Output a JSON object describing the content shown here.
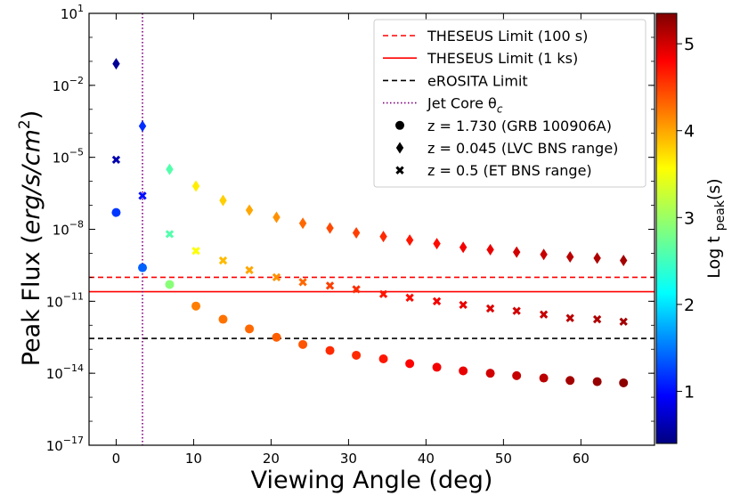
{
  "chart_data": {
    "type": "scatter",
    "xlabel": "Viewing Angle (deg)",
    "ylabel": "Peak Flux (erg/s/cm2)",
    "ylabel_parts": {
      "main": "Peak Flux (",
      "italic": "erg/s/cm",
      "sup": "2",
      "close": ")"
    },
    "xlim": [
      -3.5,
      69.5
    ],
    "ylim_log10": [
      -17,
      1
    ],
    "x_ticks": [
      0,
      10,
      20,
      30,
      40,
      50,
      60
    ],
    "y_ticks": [
      {
        "exp": 1,
        "base": "10",
        "sup": "1"
      },
      {
        "exp": -2,
        "base": "10",
        "sup": "−2"
      },
      {
        "exp": -5,
        "base": "10",
        "sup": "−5"
      },
      {
        "exp": -8,
        "base": "10",
        "sup": "−8"
      },
      {
        "exp": -11,
        "base": "10",
        "sup": "−11"
      },
      {
        "exp": -14,
        "base": "10",
        "sup": "−14"
      },
      {
        "exp": -17,
        "base": "10",
        "sup": "−17"
      }
    ],
    "colorbar": {
      "label": "Log t",
      "label_sub": "peak",
      "label_suffix": "(s)",
      "range": [
        0.4,
        5.35
      ],
      "ticks": [
        1,
        2,
        3,
        4,
        5
      ],
      "colors": [
        "#000080",
        "#0000ff",
        "#00ffff",
        "#ffff00",
        "#ff0000",
        "#800000"
      ]
    },
    "hlines": [
      {
        "name": "THESEUS Limit (100 s)",
        "log10_y": -10.0,
        "color": "#ff0000",
        "style": "dashed"
      },
      {
        "name": "THESEUS Limit (1 ks)",
        "log10_y": -10.6,
        "color": "#ff0000",
        "style": "solid"
      },
      {
        "name": "eROSITA Limit",
        "log10_y": -12.55,
        "color": "#000000",
        "style": "dashed"
      }
    ],
    "vlines": [
      {
        "name": "Jet Core θc",
        "x": 3.4,
        "color": "#800080",
        "style": "dotted"
      }
    ],
    "series": [
      {
        "name": "z = 1.730 (GRB 100906A)",
        "marker": "circle",
        "x": [
          0,
          3.4,
          6.9,
          10.3,
          13.8,
          17.2,
          20.7,
          24.1,
          27.6,
          31.0,
          34.5,
          37.9,
          41.4,
          44.8,
          48.3,
          51.7,
          55.2,
          58.6,
          62.1,
          65.5
        ],
        "log10_y": [
          -7.3,
          -9.6,
          -10.3,
          -11.2,
          -11.75,
          -12.15,
          -12.5,
          -12.8,
          -13.05,
          -13.25,
          -13.4,
          -13.6,
          -13.75,
          -13.9,
          -14.0,
          -14.1,
          -14.2,
          -14.3,
          -14.35,
          -14.4
        ],
        "log_tpeak": [
          1.2,
          1.4,
          2.9,
          4.2,
          4.25,
          4.3,
          4.35,
          4.4,
          4.6,
          4.6,
          4.7,
          4.8,
          4.85,
          4.9,
          5.0,
          5.05,
          5.1,
          5.2,
          5.25,
          5.3
        ]
      },
      {
        "name": "z = 0.045 (LVC BNS range)",
        "marker": "diamond",
        "x": [
          0,
          3.4,
          6.9,
          10.3,
          13.8,
          17.2,
          20.7,
          24.1,
          27.6,
          31.0,
          34.5,
          37.9,
          41.4,
          44.8,
          48.3,
          51.7,
          55.2,
          58.6,
          62.1,
          65.5
        ],
        "log10_y": [
          -1.1,
          -3.7,
          -5.5,
          -6.2,
          -6.8,
          -7.2,
          -7.5,
          -7.75,
          -7.95,
          -8.15,
          -8.3,
          -8.45,
          -8.6,
          -8.75,
          -8.85,
          -8.95,
          -9.05,
          -9.15,
          -9.2,
          -9.3
        ],
        "log_tpeak": [
          0.5,
          1.15,
          2.6,
          3.65,
          3.8,
          4.0,
          4.1,
          4.3,
          4.45,
          4.5,
          4.6,
          4.7,
          4.75,
          4.85,
          4.9,
          5.0,
          5.05,
          5.1,
          5.15,
          5.2
        ]
      },
      {
        "name": "z = 0.5 (ET BNS range)",
        "marker": "x",
        "x": [
          0,
          3.4,
          6.9,
          10.3,
          13.8,
          17.2,
          20.7,
          24.1,
          27.6,
          31.0,
          34.5,
          37.9,
          41.4,
          44.8,
          48.3,
          51.7,
          55.2,
          58.6,
          62.1,
          65.5
        ],
        "log10_y": [
          -5.1,
          -6.6,
          -8.2,
          -8.9,
          -9.3,
          -9.7,
          -10.0,
          -10.2,
          -10.35,
          -10.5,
          -10.7,
          -10.85,
          -11.0,
          -11.15,
          -11.3,
          -11.4,
          -11.55,
          -11.7,
          -11.75,
          -11.85
        ],
        "log_tpeak": [
          0.6,
          1.0,
          2.6,
          3.55,
          3.9,
          4.0,
          4.1,
          4.3,
          4.5,
          4.6,
          4.7,
          4.75,
          4.85,
          4.9,
          4.95,
          5.0,
          5.05,
          5.1,
          5.15,
          5.2
        ]
      }
    ],
    "legend": {
      "placement": "top-right",
      "entries": [
        {
          "label": "THESEUS Limit (100 s)",
          "kind": "line",
          "color": "#ff0000",
          "style": "dashed"
        },
        {
          "label": "THESEUS Limit (1 ks)",
          "kind": "line",
          "color": "#ff0000",
          "style": "solid"
        },
        {
          "label": "eROSITA Limit",
          "kind": "line",
          "color": "#000000",
          "style": "dashed"
        },
        {
          "label": "Jet Core θ",
          "label_sub": "c",
          "kind": "line",
          "color": "#800080",
          "style": "dotted"
        },
        {
          "label": "z = 1.730 (GRB 100906A)",
          "kind": "marker",
          "marker": "circle",
          "color": "#000000"
        },
        {
          "label": "z = 0.045 (LVC BNS range)",
          "kind": "marker",
          "marker": "diamond",
          "color": "#000000"
        },
        {
          "label": "z = 0.5 (ET BNS range)",
          "kind": "marker",
          "marker": "x",
          "color": "#000000"
        }
      ]
    }
  }
}
